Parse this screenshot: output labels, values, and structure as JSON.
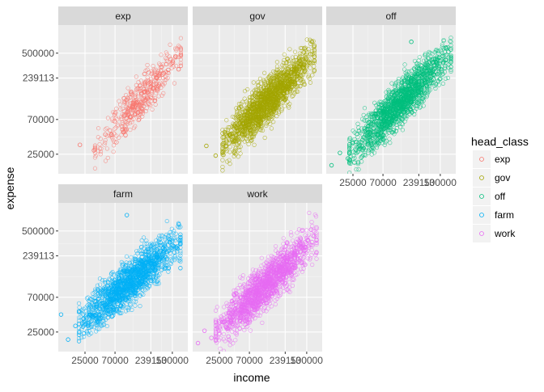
{
  "chart_data": {
    "type": "scatter",
    "faceted_by": "head_class",
    "facet_layout": {
      "ncol": 3,
      "nrow": 2
    },
    "log_scale": {
      "x": true,
      "y": true
    },
    "xlabel": "income",
    "ylabel": "expense",
    "xlim": [
      10000,
      850000
    ],
    "ylim": [
      14000,
      1150000
    ],
    "x_ticks": [
      {
        "value": 25000,
        "label": "25000"
      },
      {
        "value": 70000,
        "label": "70000"
      },
      {
        "value": 239113,
        "label": "239113"
      },
      {
        "value": 500000,
        "label": "500000"
      }
    ],
    "y_ticks": [
      {
        "value": 25000,
        "label": "25000"
      },
      {
        "value": 70000,
        "label": "70000"
      },
      {
        "value": 239113,
        "label": "239113"
      },
      {
        "value": 500000,
        "label": "500000"
      }
    ],
    "grid": true,
    "legend": {
      "title": "head_class",
      "position": "right"
    },
    "series": [
      {
        "name": "exp",
        "color": "#F8766D",
        "points": [
          [
            21000,
            33000
          ],
          [
            34000,
            28000
          ],
          [
            62000,
            45000
          ],
          [
            90000,
            52000
          ],
          [
            118000,
            76000
          ],
          [
            130000,
            105000
          ],
          [
            152000,
            118000
          ],
          [
            178000,
            95000
          ],
          [
            196000,
            160000
          ],
          [
            215000,
            132000
          ],
          [
            238000,
            210000
          ],
          [
            260000,
            176000
          ],
          [
            290000,
            240000
          ],
          [
            315000,
            198000
          ],
          [
            340000,
            330000
          ],
          [
            372000,
            275000
          ],
          [
            405000,
            360000
          ],
          [
            435000,
            305000
          ],
          [
            470000,
            420000
          ],
          [
            510000,
            380000
          ],
          [
            560000,
            450000
          ],
          [
            620000,
            310000
          ],
          [
            670000,
            470000
          ]
        ]
      },
      {
        "name": "gov",
        "color": "#A3A500",
        "points": [
          [
            16000,
            32000
          ],
          [
            22000,
            24000
          ],
          [
            30000,
            48000
          ],
          [
            42000,
            38000
          ],
          [
            55000,
            62000
          ],
          [
            70000,
            55000
          ],
          [
            86000,
            90000
          ],
          [
            100000,
            72000
          ],
          [
            120000,
            120000
          ],
          [
            140000,
            98000
          ],
          [
            165000,
            150000
          ],
          [
            188000,
            125000
          ],
          [
            212000,
            200000
          ],
          [
            240000,
            170000
          ],
          [
            265000,
            250000
          ],
          [
            295000,
            215000
          ],
          [
            330000,
            310000
          ],
          [
            365000,
            270000
          ],
          [
            400000,
            360000
          ],
          [
            440000,
            330000
          ],
          [
            490000,
            420000
          ],
          [
            545000,
            380000
          ],
          [
            600000,
            700000
          ],
          [
            650000,
            450000
          ]
        ]
      },
      {
        "name": "off",
        "color": "#00BF7D",
        "points": [
          [
            12000,
            18000
          ],
          [
            16000,
            26000
          ],
          [
            21000,
            22000
          ],
          [
            28000,
            36000
          ],
          [
            36000,
            30000
          ],
          [
            45000,
            48000
          ],
          [
            58000,
            44000
          ],
          [
            72000,
            68000
          ],
          [
            90000,
            60000
          ],
          [
            110000,
            95000
          ],
          [
            130000,
            82000
          ],
          [
            155000,
            135000
          ],
          [
            182000,
            118000
          ],
          [
            210000,
            190000
          ],
          [
            240000,
            160000
          ],
          [
            270000,
            245000
          ],
          [
            305000,
            210000
          ],
          [
            345000,
            300000
          ],
          [
            390000,
            265000
          ],
          [
            430000,
            380000
          ],
          [
            480000,
            330000
          ],
          [
            540000,
            460000
          ],
          [
            600000,
            410000
          ],
          [
            660000,
            520000
          ],
          [
            720000,
            440000
          ],
          [
            185000,
            700000
          ],
          [
            610000,
            590000
          ]
        ]
      },
      {
        "name": "farm",
        "color": "#00B0F6",
        "points": [
          [
            11000,
            42000
          ],
          [
            14000,
            20000
          ],
          [
            18000,
            30000
          ],
          [
            24000,
            24000
          ],
          [
            31000,
            40000
          ],
          [
            40000,
            34000
          ],
          [
            52000,
            56000
          ],
          [
            66000,
            48000
          ],
          [
            82000,
            78000
          ],
          [
            100000,
            66000
          ],
          [
            120000,
            110000
          ],
          [
            142000,
            92000
          ],
          [
            168000,
            150000
          ],
          [
            195000,
            128000
          ],
          [
            225000,
            200000
          ],
          [
            255000,
            170000
          ],
          [
            290000,
            250000
          ],
          [
            325000,
            215000
          ],
          [
            365000,
            300000
          ],
          [
            410000,
            270000
          ],
          [
            460000,
            360000
          ],
          [
            520000,
            320000
          ],
          [
            590000,
            300000
          ],
          [
            660000,
            340000
          ],
          [
            105000,
            800000
          ]
        ]
      },
      {
        "name": "work",
        "color": "#E76BF3",
        "points": [
          [
            12000,
            18000
          ],
          [
            15000,
            26000
          ],
          [
            19000,
            21000
          ],
          [
            25000,
            33000
          ],
          [
            32000,
            28000
          ],
          [
            41000,
            44000
          ],
          [
            52000,
            38000
          ],
          [
            66000,
            60000
          ],
          [
            82000,
            52000
          ],
          [
            100000,
            85000
          ],
          [
            120000,
            72000
          ],
          [
            142000,
            118000
          ],
          [
            168000,
            100000
          ],
          [
            195000,
            160000
          ],
          [
            225000,
            138000
          ],
          [
            255000,
            210000
          ],
          [
            290000,
            180000
          ],
          [
            325000,
            260000
          ],
          [
            365000,
            225000
          ],
          [
            410000,
            310000
          ],
          [
            460000,
            280000
          ],
          [
            520000,
            380000
          ],
          [
            580000,
            520000
          ],
          [
            640000,
            430000
          ],
          [
            700000,
            380000
          ]
        ]
      }
    ]
  }
}
